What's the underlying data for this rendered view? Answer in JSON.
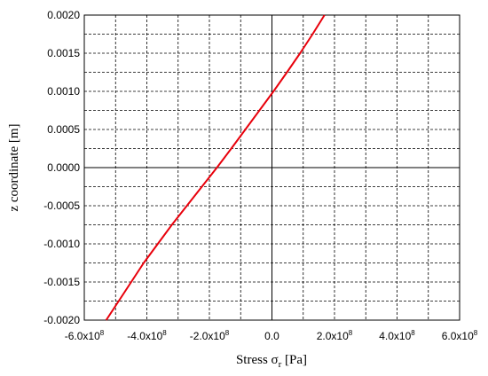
{
  "chart_data": {
    "type": "line",
    "xlabel": "Stress σr [Pa]",
    "xlabel_parts": {
      "base": "Stress ",
      "symbol": "σ",
      "subscript": "r",
      "unit": " [Pa]"
    },
    "ylabel": "z coordinate [m]",
    "xlim": [
      -600000000,
      600000000
    ],
    "ylim": [
      -0.002,
      0.002
    ],
    "grid": true,
    "zero_lines": true,
    "x_ticks": [
      {
        "value": -600000000,
        "mantissa": "-6.0x10",
        "exp": "8"
      },
      {
        "value": -400000000,
        "mantissa": "-4.0x10",
        "exp": "8"
      },
      {
        "value": -200000000,
        "mantissa": "-2.0x10",
        "exp": "8"
      },
      {
        "value": 0,
        "mantissa": "0.0",
        "exp": ""
      },
      {
        "value": 200000000,
        "mantissa": "2.0x10",
        "exp": "8"
      },
      {
        "value": 400000000,
        "mantissa": "4.0x10",
        "exp": "8"
      },
      {
        "value": 600000000,
        "mantissa": "6.0x10",
        "exp": "8"
      }
    ],
    "y_ticks": [
      {
        "value": 0.002,
        "label": "0.0020"
      },
      {
        "value": 0.0015,
        "label": "0.0015"
      },
      {
        "value": 0.001,
        "label": "0.0010"
      },
      {
        "value": 0.0005,
        "label": "0.0005"
      },
      {
        "value": 0.0,
        "label": "0.0000"
      },
      {
        "value": -0.0005,
        "label": "-0.0005"
      },
      {
        "value": -0.001,
        "label": "-0.0010"
      },
      {
        "value": -0.0015,
        "label": "-0.0015"
      },
      {
        "value": -0.002,
        "label": "-0.0020"
      }
    ],
    "series": [
      {
        "color": "#e8000b",
        "points": [
          [
            -530000000,
            -0.002
          ],
          [
            -490000000,
            -0.00175
          ],
          [
            -450000000,
            -0.0015
          ],
          [
            -410000000,
            -0.00125
          ],
          [
            -365000000,
            -0.001
          ],
          [
            -320000000,
            -0.00075
          ],
          [
            -272000000,
            -0.0005
          ],
          [
            -224000000,
            -0.00025
          ],
          [
            -176000000,
            0.0
          ],
          [
            -130000000,
            0.00025
          ],
          [
            -85000000,
            0.0005
          ],
          [
            -40000000,
            0.00075
          ],
          [
            5000000,
            0.001
          ],
          [
            48000000,
            0.00125
          ],
          [
            90000000,
            0.0015
          ],
          [
            130000000,
            0.00175
          ],
          [
            168000000,
            0.002
          ]
        ]
      }
    ]
  }
}
